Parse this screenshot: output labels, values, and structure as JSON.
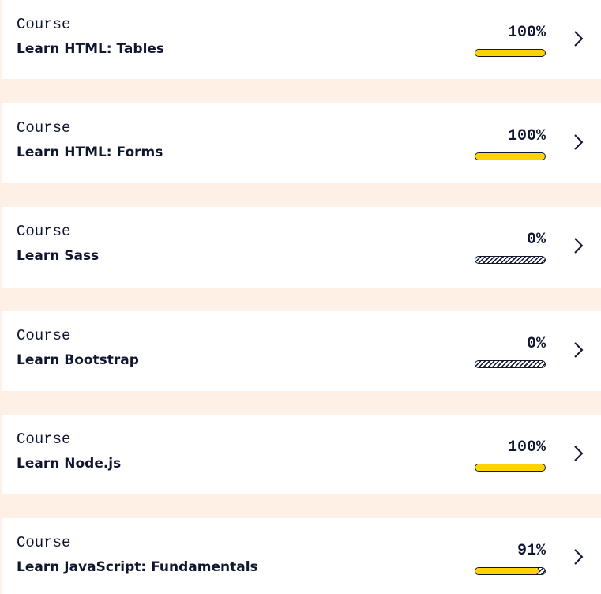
{
  "courses": [
    {
      "type": "Course",
      "title": "Learn HTML: Tables",
      "progress_label": "100%",
      "progress": 1.0
    },
    {
      "type": "Course",
      "title": "Learn HTML: Forms",
      "progress_label": "100%",
      "progress": 1.0
    },
    {
      "type": "Course",
      "title": "Learn Sass",
      "progress_label": "0%",
      "progress": 0.0
    },
    {
      "type": "Course",
      "title": "Learn Bootstrap",
      "progress_label": "0%",
      "progress": 0.0
    },
    {
      "type": "Course",
      "title": "Learn Node.js",
      "progress_label": "100%",
      "progress": 1.0
    },
    {
      "type": "Course",
      "title": "Learn JavaScript: Fundamentals",
      "progress_label": "91%",
      "progress": 0.91
    }
  ],
  "icons": {
    "open": "chevron-right-icon"
  },
  "colors": {
    "page_background": "#fff0e5",
    "card_background": "#ffffff",
    "text": "#10162f",
    "progress_fill": "#ffd300"
  }
}
